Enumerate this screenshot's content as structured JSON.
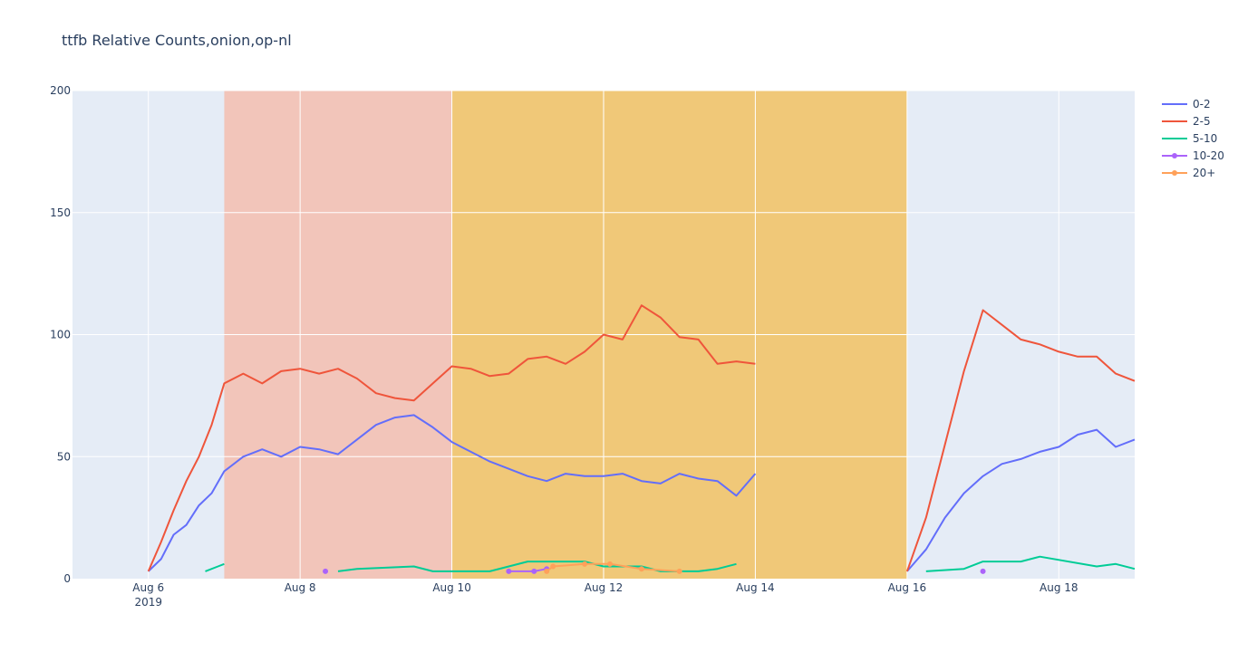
{
  "chart_data": {
    "type": "line",
    "title": "ttfb Relative Counts,onion,op-nl",
    "xlabel": "",
    "ylabel": "",
    "x_range": [
      "2019-08-05T00:00",
      "2019-08-19T00:00"
    ],
    "ylim": [
      0,
      200
    ],
    "grid": true,
    "legend_position": "top-right",
    "x_ticks": [
      {
        "t": "2019-08-06",
        "label": "Aug 6",
        "sublabel": "2019"
      },
      {
        "t": "2019-08-08",
        "label": "Aug 8"
      },
      {
        "t": "2019-08-10",
        "label": "Aug 10"
      },
      {
        "t": "2019-08-12",
        "label": "Aug 12"
      },
      {
        "t": "2019-08-14",
        "label": "Aug 14"
      },
      {
        "t": "2019-08-16",
        "label": "Aug 16"
      },
      {
        "t": "2019-08-18",
        "label": "Aug 18"
      }
    ],
    "y_ticks": [
      0,
      50,
      100,
      150,
      200
    ],
    "shaded_regions": [
      {
        "x0": "2019-08-07T00:00",
        "x1": "2019-08-10T00:00",
        "color": "#f2c5ba"
      },
      {
        "x0": "2019-08-10T00:00",
        "x1": "2019-08-16T00:00",
        "color": "#f0c878"
      }
    ],
    "series": [
      {
        "name": "0-2",
        "color": "#636efa",
        "markers": false,
        "segments": [
          [
            [
              "2019-08-06T00:00",
              3
            ],
            [
              "2019-08-06T04:00",
              8
            ],
            [
              "2019-08-06T08:00",
              18
            ],
            [
              "2019-08-06T12:00",
              22
            ],
            [
              "2019-08-06T16:00",
              30
            ],
            [
              "2019-08-06T20:00",
              35
            ],
            [
              "2019-08-07T00:00",
              44
            ],
            [
              "2019-08-07T06:00",
              50
            ],
            [
              "2019-08-07T12:00",
              53
            ],
            [
              "2019-08-07T18:00",
              50
            ],
            [
              "2019-08-08T00:00",
              54
            ],
            [
              "2019-08-08T06:00",
              53
            ],
            [
              "2019-08-08T12:00",
              51
            ],
            [
              "2019-08-08T18:00",
              57
            ],
            [
              "2019-08-09T00:00",
              63
            ],
            [
              "2019-08-09T06:00",
              66
            ],
            [
              "2019-08-09T12:00",
              67
            ],
            [
              "2019-08-09T18:00",
              62
            ],
            [
              "2019-08-10T00:00",
              56
            ],
            [
              "2019-08-10T06:00",
              52
            ],
            [
              "2019-08-10T12:00",
              48
            ],
            [
              "2019-08-10T18:00",
              45
            ],
            [
              "2019-08-11T00:00",
              42
            ],
            [
              "2019-08-11T06:00",
              40
            ],
            [
              "2019-08-11T12:00",
              43
            ],
            [
              "2019-08-11T18:00",
              42
            ],
            [
              "2019-08-12T00:00",
              42
            ],
            [
              "2019-08-12T06:00",
              43
            ],
            [
              "2019-08-12T12:00",
              40
            ],
            [
              "2019-08-12T18:00",
              39
            ],
            [
              "2019-08-13T00:00",
              43
            ],
            [
              "2019-08-13T06:00",
              41
            ],
            [
              "2019-08-13T12:00",
              40
            ],
            [
              "2019-08-13T18:00",
              34
            ],
            [
              "2019-08-14T00:00",
              43
            ]
          ],
          [
            [
              "2019-08-16T00:00",
              3
            ],
            [
              "2019-08-16T06:00",
              12
            ],
            [
              "2019-08-16T12:00",
              25
            ],
            [
              "2019-08-16T18:00",
              35
            ],
            [
              "2019-08-17T00:00",
              42
            ],
            [
              "2019-08-17T06:00",
              47
            ],
            [
              "2019-08-17T12:00",
              49
            ],
            [
              "2019-08-17T18:00",
              52
            ],
            [
              "2019-08-18T00:00",
              54
            ],
            [
              "2019-08-18T06:00",
              59
            ],
            [
              "2019-08-18T12:00",
              61
            ],
            [
              "2019-08-18T18:00",
              54
            ],
            [
              "2019-08-19T00:00",
              57
            ]
          ]
        ]
      },
      {
        "name": "2-5",
        "color": "#ef553b",
        "markers": false,
        "segments": [
          [
            [
              "2019-08-06T00:00",
              3
            ],
            [
              "2019-08-06T04:00",
              15
            ],
            [
              "2019-08-06T08:00",
              28
            ],
            [
              "2019-08-06T12:00",
              40
            ],
            [
              "2019-08-06T16:00",
              50
            ],
            [
              "2019-08-06T20:00",
              63
            ],
            [
              "2019-08-07T00:00",
              80
            ],
            [
              "2019-08-07T06:00",
              84
            ],
            [
              "2019-08-07T12:00",
              80
            ],
            [
              "2019-08-07T18:00",
              85
            ],
            [
              "2019-08-08T00:00",
              86
            ],
            [
              "2019-08-08T06:00",
              84
            ],
            [
              "2019-08-08T12:00",
              86
            ],
            [
              "2019-08-08T18:00",
              82
            ],
            [
              "2019-08-09T00:00",
              76
            ],
            [
              "2019-08-09T06:00",
              74
            ],
            [
              "2019-08-09T12:00",
              73
            ],
            [
              "2019-08-09T18:00",
              80
            ],
            [
              "2019-08-10T00:00",
              87
            ],
            [
              "2019-08-10T06:00",
              86
            ],
            [
              "2019-08-10T12:00",
              83
            ],
            [
              "2019-08-10T18:00",
              84
            ],
            [
              "2019-08-11T00:00",
              90
            ],
            [
              "2019-08-11T06:00",
              91
            ],
            [
              "2019-08-11T12:00",
              88
            ],
            [
              "2019-08-11T18:00",
              93
            ],
            [
              "2019-08-12T00:00",
              100
            ],
            [
              "2019-08-12T06:00",
              98
            ],
            [
              "2019-08-12T12:00",
              112
            ],
            [
              "2019-08-12T18:00",
              107
            ],
            [
              "2019-08-13T00:00",
              99
            ],
            [
              "2019-08-13T06:00",
              98
            ],
            [
              "2019-08-13T12:00",
              88
            ],
            [
              "2019-08-13T18:00",
              89
            ],
            [
              "2019-08-14T00:00",
              88
            ]
          ],
          [
            [
              "2019-08-16T00:00",
              3
            ],
            [
              "2019-08-16T06:00",
              25
            ],
            [
              "2019-08-16T12:00",
              55
            ],
            [
              "2019-08-16T18:00",
              85
            ],
            [
              "2019-08-17T00:00",
              110
            ],
            [
              "2019-08-17T06:00",
              104
            ],
            [
              "2019-08-17T12:00",
              98
            ],
            [
              "2019-08-17T18:00",
              96
            ],
            [
              "2019-08-18T00:00",
              93
            ],
            [
              "2019-08-18T06:00",
              91
            ],
            [
              "2019-08-18T12:00",
              91
            ],
            [
              "2019-08-18T18:00",
              84
            ],
            [
              "2019-08-19T00:00",
              81
            ]
          ]
        ]
      },
      {
        "name": "5-10",
        "color": "#00cc96",
        "markers": false,
        "segments": [
          [
            [
              "2019-08-06T18:00",
              3
            ],
            [
              "2019-08-06T22:00",
              5
            ],
            [
              "2019-08-07T00:00",
              6
            ]
          ],
          [
            [
              "2019-08-08T12:00",
              3
            ],
            [
              "2019-08-08T18:00",
              4
            ],
            [
              "2019-08-09T12:00",
              5
            ],
            [
              "2019-08-09T18:00",
              3
            ],
            [
              "2019-08-10T12:00",
              3
            ],
            [
              "2019-08-10T18:00",
              5
            ],
            [
              "2019-08-11T00:00",
              7
            ],
            [
              "2019-08-11T18:00",
              7
            ],
            [
              "2019-08-12T00:00",
              5
            ],
            [
              "2019-08-12T12:00",
              5
            ],
            [
              "2019-08-12T18:00",
              3
            ],
            [
              "2019-08-13T06:00",
              3
            ],
            [
              "2019-08-13T12:00",
              4
            ],
            [
              "2019-08-13T18:00",
              6
            ]
          ],
          [
            [
              "2019-08-16T06:00",
              3
            ],
            [
              "2019-08-16T18:00",
              4
            ],
            [
              "2019-08-17T00:00",
              7
            ],
            [
              "2019-08-17T12:00",
              7
            ],
            [
              "2019-08-17T18:00",
              9
            ],
            [
              "2019-08-18T12:00",
              5
            ],
            [
              "2019-08-18T18:00",
              6
            ],
            [
              "2019-08-19T00:00",
              4
            ]
          ]
        ]
      },
      {
        "name": "10-20",
        "color": "#ab63fa",
        "markers": true,
        "segments": [
          [
            [
              "2019-08-08T08:00",
              3
            ]
          ],
          [
            [
              "2019-08-10T18:00",
              3
            ],
            [
              "2019-08-11T02:00",
              3
            ],
            [
              "2019-08-11T06:00",
              4
            ]
          ],
          [
            [
              "2019-08-17T00:00",
              3
            ]
          ]
        ]
      },
      {
        "name": "20+",
        "color": "#ffa15a",
        "markers": true,
        "segments": [
          [
            [
              "2019-08-11T06:00",
              3
            ],
            [
              "2019-08-11T08:00",
              5
            ],
            [
              "2019-08-11T18:00",
              6
            ],
            [
              "2019-08-12T02:00",
              6
            ],
            [
              "2019-08-12T12:00",
              4
            ],
            [
              "2019-08-13T00:00",
              3
            ]
          ]
        ]
      }
    ]
  }
}
